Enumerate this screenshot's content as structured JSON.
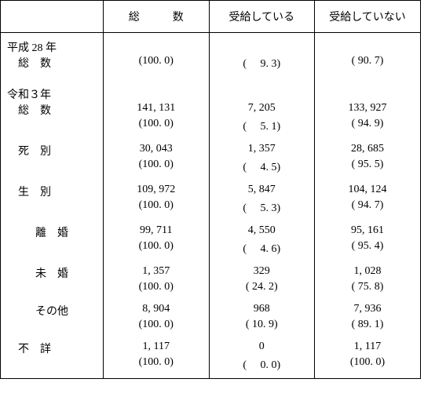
{
  "header": {
    "rowhead": "",
    "col1": "総　　　数",
    "col2": "受給している",
    "col3": "受給していない"
  },
  "rows": [
    {
      "type": "section-start",
      "label": "平成 28 年",
      "c1": "",
      "c2": "",
      "c3": ""
    },
    {
      "type": "data",
      "indent": 1,
      "label": "総　数",
      "c1": "(100. 0)",
      "c2": "(　 9. 3)",
      "c3": "( 90. 7)"
    },
    {
      "type": "gap"
    },
    {
      "type": "section-start",
      "label": "令和３年",
      "c1": "",
      "c2": "",
      "c3": ""
    },
    {
      "type": "data",
      "indent": 1,
      "label": "総　数",
      "c1": "141, 131",
      "c2": "7, 205",
      "c3": "133, 927"
    },
    {
      "type": "data",
      "indent": 1,
      "label": "",
      "c1": "(100. 0)",
      "c2": "(　 5. 1)",
      "c3": "( 94. 9)"
    },
    {
      "type": "gap"
    },
    {
      "type": "data",
      "indent": 1,
      "label": "死　別",
      "c1": "30, 043",
      "c2": "1, 357",
      "c3": "28, 685"
    },
    {
      "type": "data",
      "indent": 1,
      "label": "",
      "c1": "(100. 0)",
      "c2": "(　 4. 5)",
      "c3": "( 95. 5)"
    },
    {
      "type": "gap"
    },
    {
      "type": "data",
      "indent": 1,
      "label": "生　別",
      "c1": "109, 972",
      "c2": "5, 847",
      "c3": "104, 124"
    },
    {
      "type": "data",
      "indent": 1,
      "label": "",
      "c1": "(100. 0)",
      "c2": "(　 5. 3)",
      "c3": "( 94. 7)"
    },
    {
      "type": "gap"
    },
    {
      "type": "data",
      "indent": 2,
      "label": "離　婚",
      "c1": "99, 711",
      "c2": "4, 550",
      "c3": "95, 161"
    },
    {
      "type": "data",
      "indent": 2,
      "label": "",
      "c1": "(100. 0)",
      "c2": "(　 4. 6)",
      "c3": "( 95. 4)"
    },
    {
      "type": "gap"
    },
    {
      "type": "data",
      "indent": 2,
      "label": "未　婚",
      "c1": "1, 357",
      "c2": "329",
      "c3": "1, 028"
    },
    {
      "type": "data",
      "indent": 2,
      "label": "",
      "c1": "(100. 0)",
      "c2": "( 24. 2)",
      "c3": "( 75. 8)"
    },
    {
      "type": "gap"
    },
    {
      "type": "data",
      "indent": 2,
      "label": "その他",
      "c1": "8, 904",
      "c2": "968",
      "c3": "7, 936"
    },
    {
      "type": "data",
      "indent": 2,
      "label": "",
      "c1": "(100. 0)",
      "c2": "( 10. 9)",
      "c3": "( 89. 1)"
    },
    {
      "type": "gap"
    },
    {
      "type": "data",
      "indent": 1,
      "label": "不　詳",
      "c1": "1, 117",
      "c2": "0",
      "c3": "1, 117"
    },
    {
      "type": "data last",
      "indent": 1,
      "label": "",
      "c1": "(100. 0)",
      "c2": "(　 0. 0)",
      "c3": "(100. 0)"
    }
  ]
}
